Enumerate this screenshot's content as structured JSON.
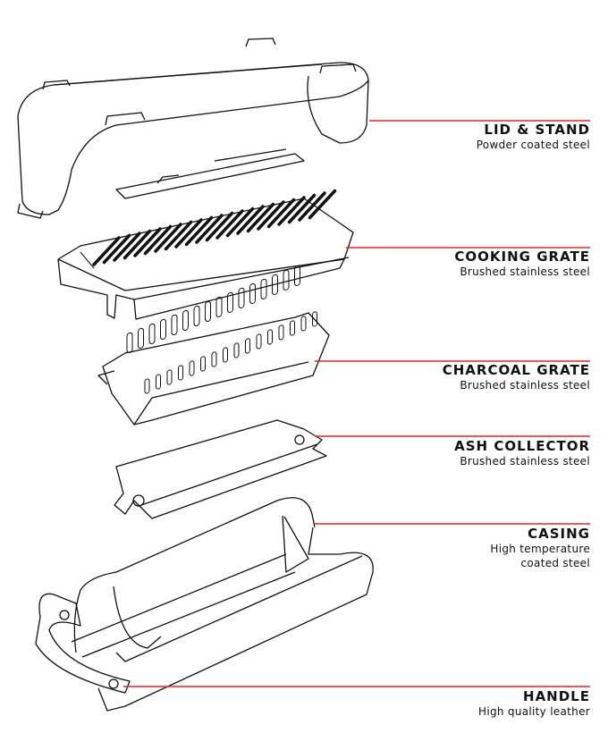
{
  "accent_color": "#e8242b",
  "parts": [
    {
      "id": "lid-stand",
      "title": "LID & STAND",
      "material": [
        "Powder coated steel"
      ]
    },
    {
      "id": "cooking-grate",
      "title": "COOKING GRATE",
      "material": [
        "Brushed stainless steel"
      ]
    },
    {
      "id": "charcoal-grate",
      "title": "CHARCOAL GRATE",
      "material": [
        "Brushed stainless steel"
      ]
    },
    {
      "id": "ash-collector",
      "title": "ASH COLLECTOR",
      "material": [
        "Brushed stainless steel"
      ]
    },
    {
      "id": "casing",
      "title": "CASING",
      "material": [
        "High temperature",
        "coated steel"
      ]
    },
    {
      "id": "handle",
      "title": "HANDLE",
      "material": [
        "High quality leather"
      ]
    }
  ]
}
